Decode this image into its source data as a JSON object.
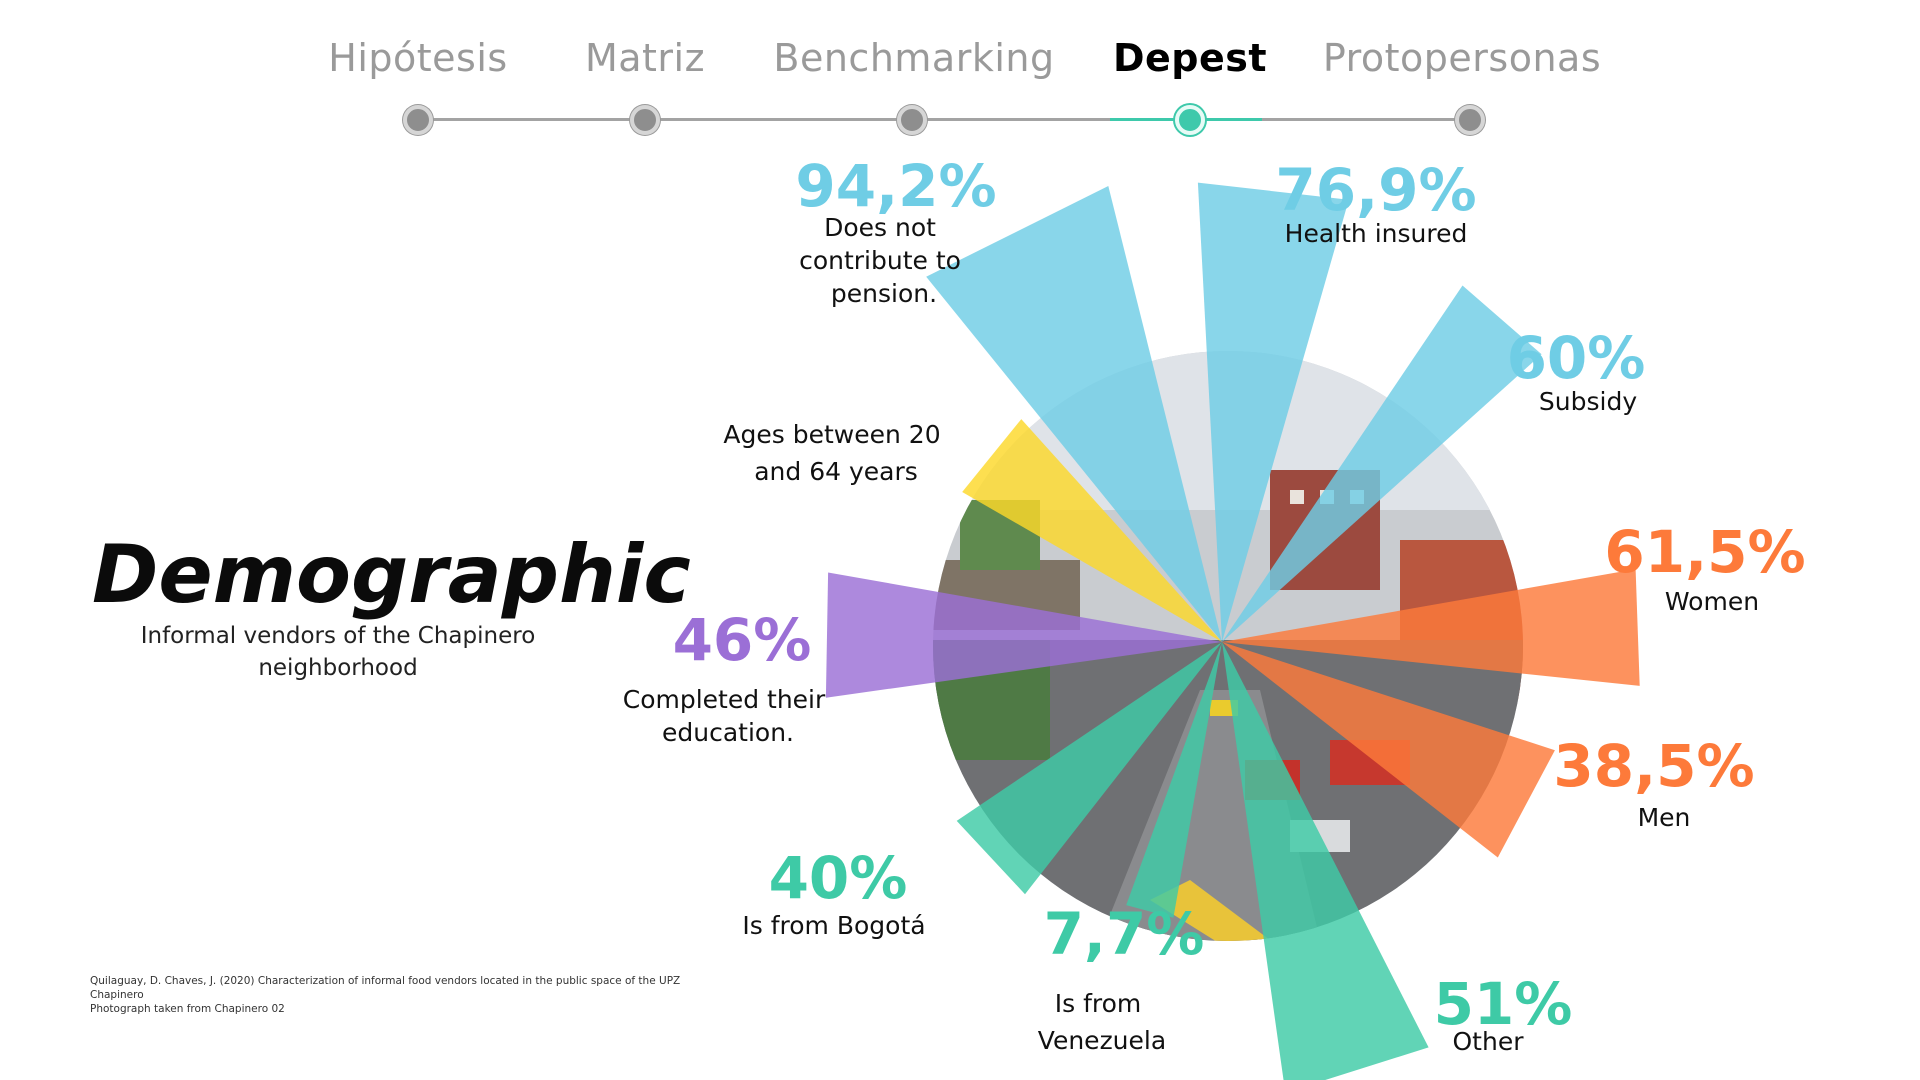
{
  "steps": [
    {
      "label": "Hipótesis"
    },
    {
      "label": "Matriz"
    },
    {
      "label": "Benchmarking"
    },
    {
      "label": "Depest"
    },
    {
      "label": "Protopersonas"
    }
  ],
  "active_step": 3,
  "page": {
    "title": "Demographic",
    "subtitle": "Informal vendors of the Chapinero neighborhood"
  },
  "source": {
    "line1": "Quilaguay, D. Chaves, J. (2020) Characterization of informal food vendors located in the public space of the UPZ Chapinero",
    "line2": "Photograph taken from Chapinero 02"
  },
  "colors": {
    "blue": "#6fcde5",
    "orange": "#fd7a3a",
    "teal": "#3ecaa6",
    "purple": "#9b6fd6",
    "yellow": "#fcd82a",
    "active": "#3ec9ab"
  },
  "chart_data": {
    "type": "polar-area",
    "title": "",
    "segments": [
      {
        "value": "94,2%",
        "label": "Does not contribute to pension.",
        "color": "#6fcde5"
      },
      {
        "value": "76,9%",
        "label": "Health insured",
        "color": "#6fcde5"
      },
      {
        "value": "60%",
        "label": "Subsidy",
        "color": "#6fcde5"
      },
      {
        "value": "61,5%",
        "label": "Women",
        "color": "#fd7a3a"
      },
      {
        "value": "38,5%",
        "label": "Men",
        "color": "#fd7a3a"
      },
      {
        "value": "51%",
        "label": "Other",
        "color": "#3ecaa6"
      },
      {
        "value": "7,7%",
        "label": "Is from Venezuela",
        "color": "#3ecaa6"
      },
      {
        "value": "40%",
        "label": "Is from Bogotá",
        "color": "#3ecaa6"
      },
      {
        "value": "46%",
        "label": "Completed their education.",
        "color": "#9b6fd6"
      },
      {
        "value": "",
        "label": "Ages between 20 and 64 years",
        "color": "#fcd82a"
      }
    ]
  }
}
